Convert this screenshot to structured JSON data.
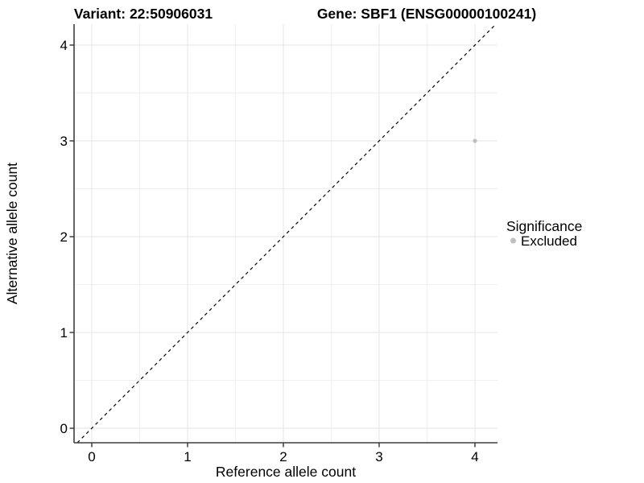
{
  "header": {
    "variant_title": "Variant: 22:50906031",
    "gene_title": "Gene: SBF1 (ENSG00000100241)"
  },
  "chart_data": {
    "type": "scatter",
    "titles": {
      "left": "Variant: 22:50906031",
      "right": "Gene: SBF1 (ENSG00000100241)"
    },
    "xlabel": "Reference allele count",
    "ylabel": "Alternative allele count",
    "xlim": [
      0,
      4
    ],
    "ylim": [
      0,
      4
    ],
    "x_ticks": [
      0,
      1,
      2,
      3,
      4
    ],
    "y_ticks": [
      0,
      1,
      2,
      3,
      4
    ],
    "x_minor_ticks": [
      0.5,
      1.5,
      2.5,
      3.5
    ],
    "y_minor_ticks": [
      0.5,
      1.5,
      2.5,
      3.5
    ],
    "grid": "major+minor",
    "background": "#ffffff",
    "series": [
      {
        "name": "Excluded",
        "color": "#bebebe",
        "point_radius": 2.6,
        "points": [
          {
            "x": 4,
            "y": 3
          }
        ]
      }
    ],
    "reference_line": {
      "kind": "identity",
      "equation": "y = x",
      "style": "dashed",
      "color": "#000000"
    },
    "legend": {
      "title": "Significance",
      "position": "right",
      "entries": [
        {
          "label": "Excluded",
          "color": "#bebebe"
        }
      ]
    }
  },
  "colors": {
    "axis_line": "#3f3f3f",
    "grid_major": "#e6e6e6",
    "grid_minor": "#f0f0f0",
    "excluded_point": "#bebebe",
    "text": "#000000"
  }
}
